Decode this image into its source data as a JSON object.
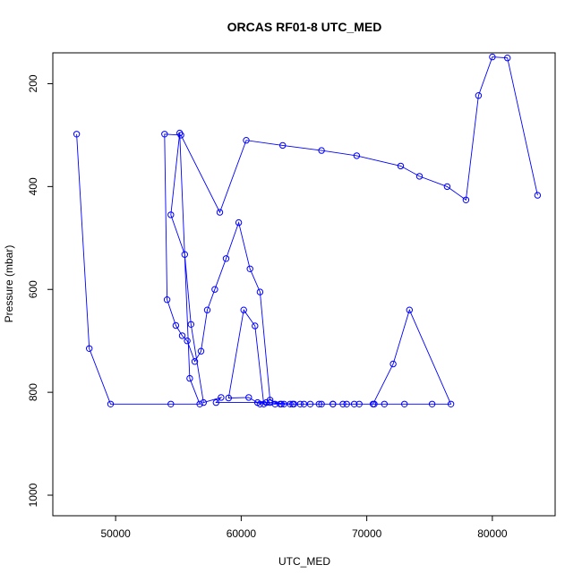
{
  "chart_data": {
    "type": "line",
    "title": "ORCAS RF01-8 UTC_MED",
    "xlabel": "UTC_MED",
    "ylabel": "Pressure (mbar)",
    "xlim": [
      45000,
      85000
    ],
    "ylim": [
      1040,
      140
    ],
    "y_reversed": true,
    "x_ticks": [
      50000,
      60000,
      70000,
      80000
    ],
    "y_ticks": [
      200,
      400,
      600,
      800,
      1000
    ],
    "grid": false,
    "legend": "none",
    "colors": {
      "series": "#0000ff",
      "axes": "#000000",
      "background": "#ffffff"
    },
    "marker": "open-circle",
    "series": [
      {
        "x": [
          46900,
          47900,
          49600,
          54400,
          56700,
          55900,
          55100,
          54400,
          55500,
          56000,
          57000,
          58400,
          58000,
          61300,
          62300,
          63200,
          64100,
          62000,
          61500,
          60600,
          59000,
          60200,
          61100,
          61800,
          62700,
          63400,
          64200,
          65000,
          66200,
          67300,
          68100,
          69000,
          70600,
          71400,
          73000,
          75200,
          76700,
          73400,
          72100,
          70500,
          69400,
          68400,
          67300,
          66400,
          65500,
          64700,
          63900,
          63100,
          62300,
          61500,
          60700,
          59800,
          58800,
          57900,
          57300,
          56800,
          56300,
          55700,
          55300,
          54800,
          54100,
          53900,
          55200,
          58300,
          60400,
          63300,
          66400,
          69200,
          72700,
          74200,
          76400,
          77900,
          78900,
          80000,
          81200,
          83600
        ],
        "y": [
          298,
          715,
          823,
          823,
          823,
          773,
          296,
          455,
          532,
          668,
          820,
          810,
          820,
          820,
          820,
          823,
          823,
          820,
          823,
          810,
          811,
          640,
          671,
          823,
          823,
          823,
          823,
          823,
          823,
          823,
          823,
          823,
          823,
          823,
          823,
          823,
          823,
          640,
          745,
          823,
          823,
          823,
          823,
          823,
          823,
          823,
          823,
          823,
          815,
          605,
          560,
          470,
          540,
          600,
          640,
          720,
          740,
          700,
          690,
          670,
          620,
          298,
          300,
          450,
          310,
          320,
          330,
          340,
          360,
          380,
          400,
          426,
          223,
          148,
          150,
          417
        ]
      }
    ]
  }
}
